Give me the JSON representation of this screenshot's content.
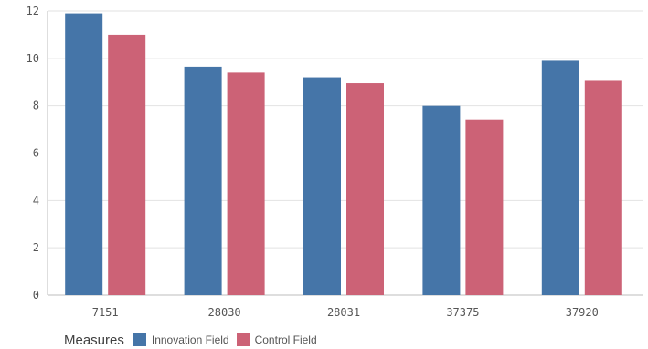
{
  "chart_data": {
    "type": "bar",
    "categories": [
      "7151",
      "28030",
      "28031",
      "37375",
      "37920"
    ],
    "series": [
      {
        "name": "Innovation Field",
        "color": "#4575a8",
        "values": [
          11.9,
          9.65,
          9.2,
          8.0,
          9.9
        ]
      },
      {
        "name": "Control Field",
        "color": "#cc6276",
        "values": [
          11.0,
          9.4,
          8.95,
          7.42,
          9.05
        ]
      }
    ],
    "ylim": [
      0,
      12
    ],
    "yticks": [
      0,
      2,
      4,
      6,
      8,
      10,
      12
    ],
    "grid": true,
    "legend": {
      "title": "Measures",
      "placement": "bottom-left"
    }
  }
}
